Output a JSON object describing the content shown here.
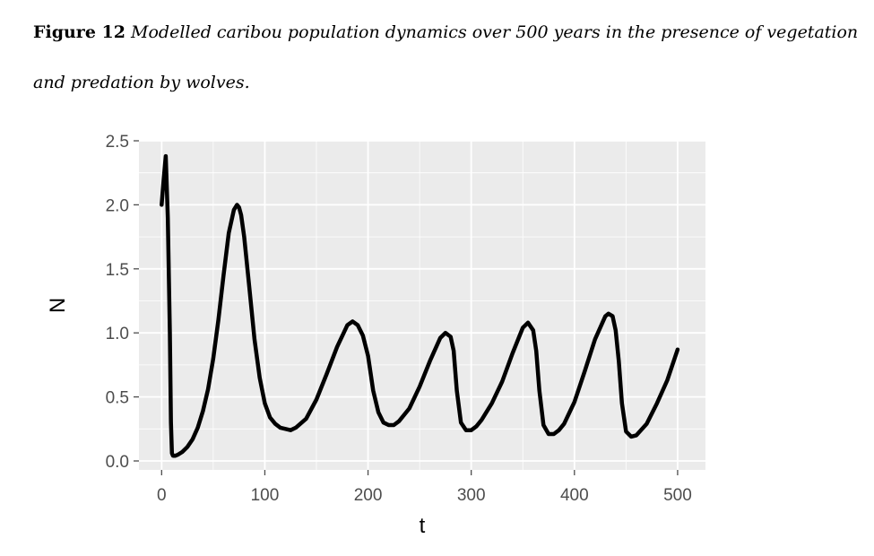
{
  "caption": {
    "label": "Figure 12",
    "text": "Modelled caribou population dynamics over 500 years in the presence of vegetation and predation by wolves."
  },
  "colors": {
    "panel": "#ebebeb",
    "grid": "#ffffff",
    "line": "#000000",
    "tick": "#4d4d4d"
  },
  "chart_data": {
    "type": "line",
    "title": "",
    "xlabel": "t",
    "ylabel": "N",
    "xlim": [
      -22,
      527
    ],
    "ylim": [
      -0.07,
      2.5
    ],
    "x_ticks": [
      0,
      100,
      200,
      300,
      400,
      500
    ],
    "x_tick_labels": [
      "0",
      "100",
      "200",
      "300",
      "400",
      "500"
    ],
    "y_ticks": [
      0.0,
      0.5,
      1.0,
      1.5,
      2.0,
      2.5
    ],
    "y_tick_labels": [
      "0.0",
      "0.5",
      "1.0",
      "1.5",
      "2.0",
      "2.5"
    ],
    "grid": true,
    "series": [
      {
        "x": [
          0,
          2,
          4,
          6,
          8,
          9,
          10,
          11,
          13,
          16,
          20,
          25,
          30,
          35,
          40,
          45,
          50,
          55,
          60,
          65,
          70,
          73,
          75,
          77,
          80,
          85,
          90,
          95,
          100,
          105,
          110,
          115,
          120,
          125,
          130,
          140,
          150,
          160,
          170,
          180,
          185,
          190,
          195,
          200,
          205,
          210,
          215,
          220,
          225,
          230,
          240,
          250,
          260,
          270,
          275,
          280,
          283,
          286,
          290,
          295,
          300,
          305,
          310,
          320,
          330,
          340,
          350,
          355,
          360,
          363,
          366,
          370,
          375,
          380,
          385,
          390,
          400,
          410,
          420,
          430,
          433,
          437,
          440,
          443,
          446,
          450,
          455,
          460,
          470,
          480,
          490,
          500
        ],
        "y": [
          2.0,
          2.2,
          2.38,
          1.9,
          1.0,
          0.3,
          0.06,
          0.04,
          0.04,
          0.05,
          0.07,
          0.11,
          0.17,
          0.26,
          0.39,
          0.56,
          0.8,
          1.1,
          1.45,
          1.78,
          1.96,
          2.0,
          1.98,
          1.92,
          1.75,
          1.35,
          0.95,
          0.65,
          0.45,
          0.34,
          0.29,
          0.26,
          0.25,
          0.24,
          0.26,
          0.33,
          0.48,
          0.68,
          0.89,
          1.06,
          1.09,
          1.06,
          0.98,
          0.82,
          0.55,
          0.38,
          0.3,
          0.28,
          0.28,
          0.31,
          0.41,
          0.58,
          0.78,
          0.96,
          1.0,
          0.97,
          0.86,
          0.55,
          0.3,
          0.24,
          0.24,
          0.27,
          0.32,
          0.45,
          0.62,
          0.84,
          1.04,
          1.08,
          1.02,
          0.86,
          0.55,
          0.28,
          0.21,
          0.21,
          0.24,
          0.29,
          0.46,
          0.7,
          0.95,
          1.13,
          1.15,
          1.13,
          1.02,
          0.78,
          0.45,
          0.23,
          0.19,
          0.2,
          0.29,
          0.45,
          0.63,
          0.87
        ]
      }
    ]
  }
}
